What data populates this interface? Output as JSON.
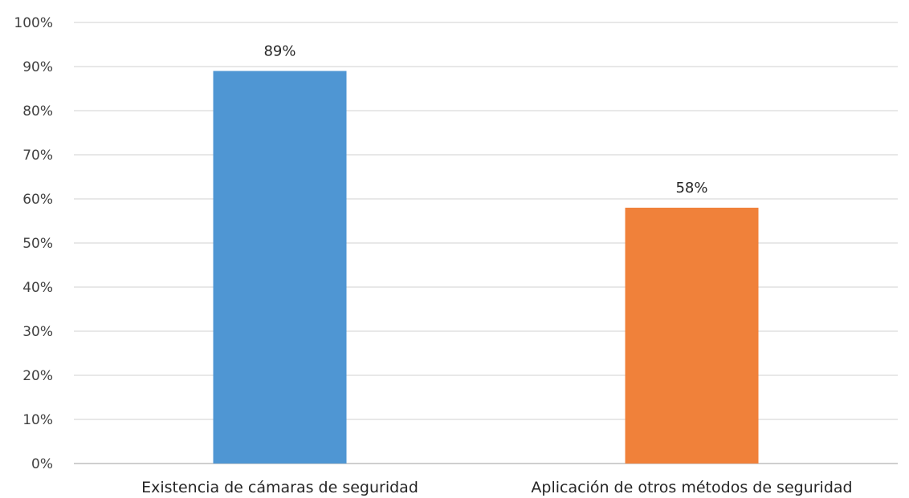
{
  "chart_data": {
    "type": "bar",
    "title": "",
    "xlabel": "",
    "ylabel": "",
    "categories": [
      "Existencia de cámaras de seguridad",
      "Aplicación de otros métodos de seguridad"
    ],
    "values": [
      89,
      58
    ],
    "data_labels": [
      "89%",
      "58%"
    ],
    "bar_colors": [
      "#4f96d3",
      "#f0813a"
    ],
    "ylim": [
      0,
      100
    ],
    "yticks": [
      0,
      10,
      20,
      30,
      40,
      50,
      60,
      70,
      80,
      90,
      100
    ],
    "ytick_labels": [
      "0%",
      "10%",
      "20%",
      "30%",
      "40%",
      "50%",
      "60%",
      "70%",
      "80%",
      "90%",
      "100%"
    ],
    "grid": true,
    "legend": "none"
  }
}
